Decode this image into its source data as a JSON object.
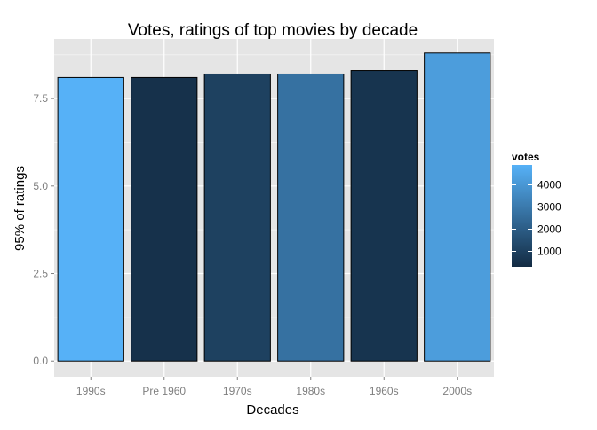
{
  "chart_data": {
    "type": "bar",
    "title": "Votes, ratings of top movies by decade",
    "xlabel": "Decades",
    "ylabel": "95% of ratings",
    "categories": [
      "1990s",
      "Pre 1960",
      "1970s",
      "1980s",
      "1960s",
      "2000s"
    ],
    "values": [
      8.1,
      8.1,
      8.2,
      8.2,
      8.3,
      8.8
    ],
    "votes": [
      4900,
      500,
      1050,
      2700,
      600,
      4200
    ],
    "ylim": [
      -0.45,
      9.2
    ],
    "yticks": [
      0.0,
      2.5,
      5.0,
      7.5
    ],
    "ytick_labels": [
      "0.0",
      "2.5",
      "5.0",
      "7.5"
    ],
    "grid": true,
    "legend": {
      "title": "votes",
      "placement": "right",
      "range": [
        300,
        4900
      ],
      "ticks": [
        1000,
        2000,
        3000,
        4000
      ],
      "tick_labels": [
        "1000",
        "2000",
        "3000",
        "4000"
      ],
      "color_low": "#132b43",
      "color_high": "#56b1f7"
    },
    "colors": {
      "panel": "#e5e5e5",
      "grid_major": "#ffffff",
      "grid_minor": "#f2f2f2",
      "bar_outline": "#000000"
    }
  }
}
